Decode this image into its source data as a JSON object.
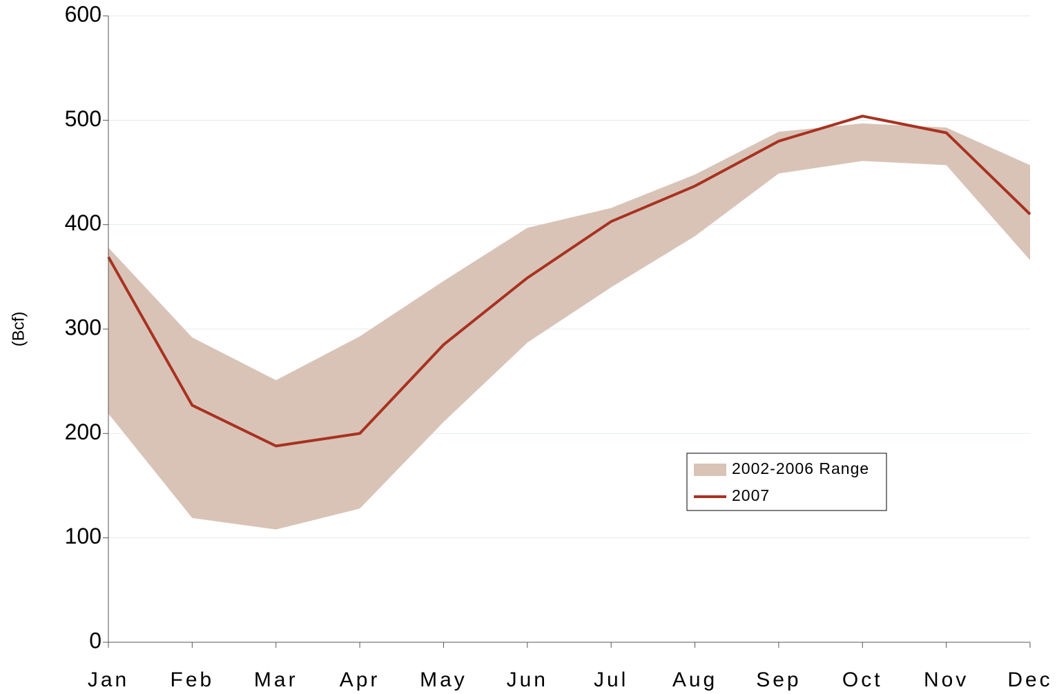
{
  "chart_data": {
    "type": "line-band",
    "ylabel": "(Bcf)",
    "categories": [
      "Jan",
      "Feb",
      "Mar",
      "Apr",
      "May",
      "Jun",
      "Jul",
      "Aug",
      "Sep",
      "Oct",
      "Nov",
      "Dec"
    ],
    "series": [
      {
        "name": "2002-2006 Range",
        "color": "#d9c3b7",
        "low": [
          219,
          119,
          108,
          128,
          211,
          287,
          340,
          389,
          449,
          461,
          457,
          366
        ],
        "high": [
          378,
          292,
          251,
          293,
          346,
          397,
          416,
          448,
          489,
          497,
          493,
          457
        ]
      },
      {
        "name": "2007",
        "color": "#a83220",
        "values": [
          369,
          227,
          188,
          200,
          285,
          349,
          403,
          437,
          480,
          504,
          488,
          410
        ]
      }
    ],
    "ylim": [
      0,
      600
    ],
    "yticks": [
      0,
      100,
      200,
      300,
      400,
      500,
      600
    ],
    "grid": true,
    "legend": "center right"
  }
}
